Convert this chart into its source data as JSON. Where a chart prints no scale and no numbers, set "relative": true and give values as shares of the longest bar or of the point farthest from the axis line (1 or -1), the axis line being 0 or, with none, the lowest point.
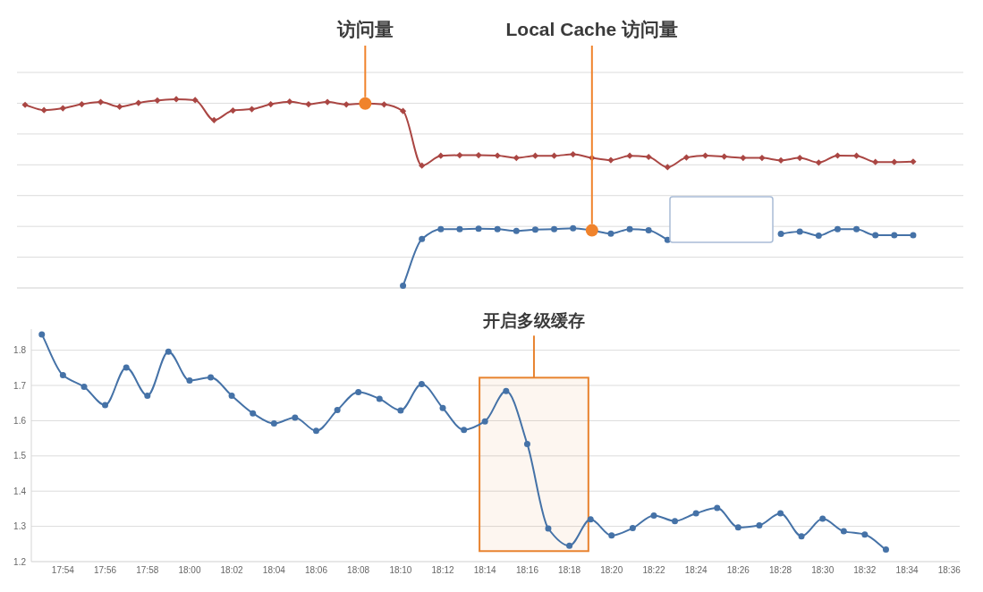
{
  "chart_data": [
    {
      "type": "line",
      "relative": true,
      "grid": "y",
      "categories": [
        null,
        null,
        null,
        null,
        null,
        null,
        null,
        null,
        null,
        null,
        null,
        null,
        null,
        null,
        null,
        null,
        null,
        null,
        null,
        null,
        null,
        null,
        null,
        null,
        null,
        null,
        null,
        null,
        null,
        null,
        null,
        null,
        null,
        null,
        null,
        null,
        null,
        null,
        null,
        null,
        null,
        null,
        null,
        null,
        null,
        null,
        null,
        null
      ],
      "series": [
        {
          "color": "#aa4643",
          "marker": "diamond",
          "values": [
            0.97,
            0.942,
            0.952,
            0.973,
            0.985,
            0.96,
            0.98,
            0.993,
            1,
            0.995,
            0.889,
            0.94,
            0.947,
            0.973,
            0.987,
            0.973,
            0.985,
            0.972,
            0.977,
            0.972,
            0.937,
            0.648,
            0.7,
            0.703,
            0.703,
            0.701,
            0.689,
            0.7,
            0.7,
            0.708,
            0.689,
            0.677,
            0.7,
            0.694,
            0.64,
            0.691,
            0.701,
            0.696,
            0.689,
            0.689,
            0.676,
            0.689,
            0.664,
            0.701,
            0.7,
            0.667,
            0.667,
            0.669
          ]
        },
        {
          "color": "#4572a7",
          "marker": "circle",
          "values": [
            null,
            null,
            null,
            null,
            null,
            null,
            null,
            null,
            null,
            null,
            null,
            null,
            null,
            null,
            null,
            null,
            null,
            null,
            null,
            null,
            0.012,
            0.259,
            0.312,
            0.312,
            0.314,
            0.312,
            0.302,
            0.309,
            0.311,
            0.316,
            0.305,
            0.288,
            0.312,
            0.306,
            0.255,
            null,
            null,
            null,
            null,
            null,
            0.287,
            0.299,
            0.277,
            0.312,
            0.311,
            0.279,
            0.28,
            0.28
          ]
        }
      ],
      "annotations": [
        "访问量",
        "Local Cache 访问量"
      ]
    },
    {
      "type": "line",
      "color": "#4572a7",
      "marker": "circle",
      "grid": "y",
      "x": [
        17.8833,
        17.9,
        17.9167,
        17.9333,
        17.95,
        17.9667,
        17.9833,
        18,
        18.0167,
        18.0333,
        18.05,
        18.0667,
        18.0833,
        18.1,
        18.1167,
        18.1333,
        18.15,
        18.1667,
        18.1833,
        18.2,
        18.2167,
        18.2333,
        18.25,
        18.2667,
        18.2833,
        18.3,
        18.3167,
        18.3333,
        18.35,
        18.3667,
        18.3833,
        18.4,
        18.4167,
        18.4333,
        18.45,
        18.4667,
        18.4833,
        18.5,
        18.5167,
        18.5333,
        18.55
      ],
      "values": [
        1.845,
        1.729,
        1.696,
        1.644,
        1.751,
        1.671,
        1.796,
        1.714,
        1.723,
        1.671,
        1.621,
        1.592,
        1.609,
        1.571,
        1.63,
        1.681,
        1.662,
        1.629,
        1.704,
        1.636,
        1.574,
        1.598,
        1.684,
        1.534,
        1.294,
        1.245,
        1.32,
        1.274,
        1.295,
        1.331,
        1.315,
        1.337,
        1.352,
        1.297,
        1.303,
        1.337,
        1.272,
        1.322,
        1.286,
        1.277,
        1.234
      ],
      "xlim": [
        17.875,
        18.6083
      ],
      "xticks": [
        {
          "value": 17.9,
          "label": "17:54"
        },
        {
          "value": 17.9333,
          "label": "17:56"
        },
        {
          "value": 17.9667,
          "label": "17:58"
        },
        {
          "value": 18,
          "label": "18:00"
        },
        {
          "value": 18.0333,
          "label": "18:02"
        },
        {
          "value": 18.0667,
          "label": "18:04"
        },
        {
          "value": 18.1,
          "label": "18:06"
        },
        {
          "value": 18.1333,
          "label": "18:08"
        },
        {
          "value": 18.1667,
          "label": "18:10"
        },
        {
          "value": 18.2,
          "label": "18:12"
        },
        {
          "value": 18.2333,
          "label": "18:14"
        },
        {
          "value": 18.2667,
          "label": "18:16"
        },
        {
          "value": 18.3,
          "label": "18:18"
        },
        {
          "value": 18.3333,
          "label": "18:20"
        },
        {
          "value": 18.3667,
          "label": "18:22"
        },
        {
          "value": 18.4,
          "label": "18:24"
        },
        {
          "value": 18.4333,
          "label": "18:26"
        },
        {
          "value": 18.4667,
          "label": "18:28"
        },
        {
          "value": 18.5,
          "label": "18:30"
        },
        {
          "value": 18.5333,
          "label": "18:32"
        },
        {
          "value": 18.5667,
          "label": "18:34"
        },
        {
          "value": 18.6,
          "label": "18:36"
        }
      ],
      "ylim": [
        1.2,
        1.86
      ],
      "yticks": [
        1.2,
        1.3,
        1.4,
        1.5,
        1.6,
        1.7,
        1.8
      ],
      "bands": [
        {
          "axis": "x",
          "from": 18.229,
          "to": 18.315,
          "label": "开启多级缓存",
          "color": "#e8832f"
        }
      ]
    }
  ]
}
